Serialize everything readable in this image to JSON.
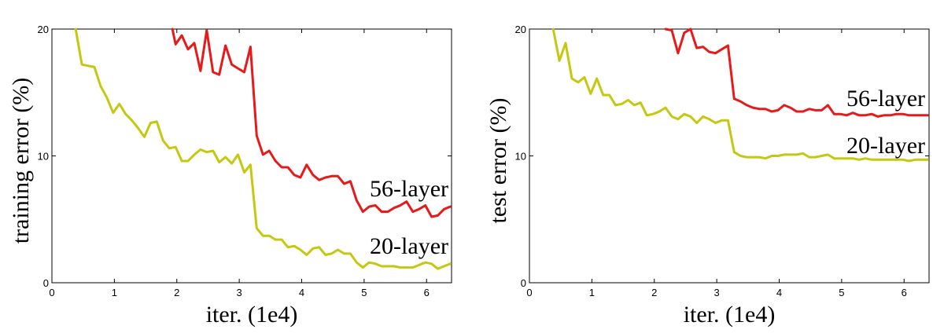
{
  "chart_data": [
    {
      "type": "line",
      "title": "",
      "xlabel": "iter. (1e4)",
      "ylabel": "training error (%)",
      "xlim": [
        0,
        6.4
      ],
      "ylim": [
        0,
        20
      ],
      "xticks": [
        "0",
        "1",
        "2",
        "3",
        "4",
        "5",
        "6"
      ],
      "yticks": [
        "0",
        "10",
        "20"
      ],
      "grid": false,
      "series": [
        {
          "name": "56-layer",
          "color": "#e8191a",
          "x": [
            1.93,
            1.98,
            2.08,
            2.18,
            2.28,
            2.38,
            2.48,
            2.58,
            2.68,
            2.78,
            2.88,
            2.98,
            3.08,
            3.18,
            3.28,
            3.38,
            3.48,
            3.58,
            3.68,
            3.78,
            3.88,
            3.98,
            4.08,
            4.18,
            4.28,
            4.38,
            4.48,
            4.58,
            4.68,
            4.78,
            4.88,
            4.98,
            5.08,
            5.18,
            5.28,
            5.38,
            5.48,
            5.58,
            5.68,
            5.78,
            5.88,
            5.98,
            6.08,
            6.18,
            6.28,
            6.38
          ],
          "values": [
            20.0,
            18.8,
            19.5,
            18.4,
            18.9,
            16.7,
            19.9,
            16.6,
            16.4,
            18.7,
            17.2,
            16.9,
            16.6,
            18.6,
            11.6,
            10.1,
            10.4,
            9.6,
            9.1,
            9.1,
            8.5,
            8.3,
            9.3,
            8.5,
            8.1,
            8.3,
            8.4,
            8.4,
            7.8,
            8.0,
            6.5,
            5.6,
            6.0,
            6.1,
            5.6,
            5.6,
            5.9,
            6.1,
            6.4,
            5.6,
            5.8,
            6.1,
            5.2,
            5.3,
            5.8,
            6.0
          ]
        },
        {
          "name": "20-layer",
          "color": "#c4c810",
          "x": [
            0.38,
            0.48,
            0.58,
            0.68,
            0.78,
            0.88,
            0.98,
            1.08,
            1.18,
            1.28,
            1.38,
            1.48,
            1.58,
            1.68,
            1.78,
            1.88,
            1.98,
            2.08,
            2.18,
            2.28,
            2.38,
            2.48,
            2.58,
            2.68,
            2.78,
            2.88,
            2.98,
            3.08,
            3.18,
            3.28,
            3.38,
            3.48,
            3.58,
            3.68,
            3.78,
            3.88,
            3.98,
            4.08,
            4.18,
            4.28,
            4.38,
            4.48,
            4.58,
            4.68,
            4.78,
            4.88,
            4.98,
            5.08,
            5.18,
            5.28,
            5.38,
            5.48,
            5.58,
            5.68,
            5.78,
            5.88,
            5.98,
            6.08,
            6.18,
            6.28,
            6.38
          ],
          "values": [
            20.0,
            17.2,
            17.1,
            17.0,
            15.5,
            14.6,
            13.4,
            14.1,
            13.3,
            12.8,
            12.2,
            11.5,
            12.6,
            12.7,
            11.2,
            10.6,
            10.7,
            9.6,
            9.6,
            10.1,
            10.5,
            10.3,
            10.4,
            9.5,
            9.9,
            9.4,
            10.1,
            8.7,
            9.3,
            4.3,
            3.7,
            3.7,
            3.4,
            3.4,
            2.8,
            2.9,
            2.6,
            2.2,
            2.7,
            2.8,
            2.2,
            2.3,
            2.6,
            2.3,
            2.3,
            1.6,
            1.2,
            1.6,
            1.5,
            1.3,
            1.3,
            1.3,
            1.2,
            1.2,
            1.2,
            1.4,
            1.6,
            1.5,
            1.1,
            1.3,
            1.5
          ]
        }
      ]
    },
    {
      "type": "line",
      "title": "",
      "xlabel": "iter. (1e4)",
      "ylabel": "test error (%)",
      "xlim": [
        0,
        6.4
      ],
      "ylim": [
        0,
        20
      ],
      "xticks": [
        "0",
        "1",
        "2",
        "3",
        "4",
        "5",
        "6"
      ],
      "yticks": [
        "0",
        "10",
        "20"
      ],
      "grid": false,
      "series": [
        {
          "name": "56-layer",
          "color": "#e8191a",
          "x": [
            2.18,
            2.28,
            2.38,
            2.48,
            2.58,
            2.68,
            2.78,
            2.88,
            2.98,
            3.08,
            3.18,
            3.28,
            3.38,
            3.48,
            3.58,
            3.68,
            3.78,
            3.88,
            3.98,
            4.08,
            4.18,
            4.28,
            4.38,
            4.48,
            4.58,
            4.68,
            4.78,
            4.88,
            4.98,
            5.08,
            5.18,
            5.28,
            5.38,
            5.48,
            5.58,
            5.68,
            5.78,
            5.88,
            5.98,
            6.08,
            6.18,
            6.28,
            6.38
          ],
          "values": [
            20.0,
            19.9,
            18.1,
            19.7,
            20.0,
            18.5,
            18.6,
            18.2,
            18.1,
            18.4,
            18.7,
            14.5,
            14.3,
            14.0,
            13.8,
            13.7,
            13.7,
            13.5,
            13.6,
            14.0,
            13.8,
            13.5,
            13.5,
            13.7,
            13.6,
            13.6,
            14.0,
            13.3,
            13.3,
            13.2,
            13.4,
            13.2,
            13.2,
            13.3,
            13.1,
            13.2,
            13.2,
            13.3,
            13.3,
            13.2,
            13.2,
            13.2,
            13.2
          ]
        },
        {
          "name": "20-layer",
          "color": "#c4c810",
          "x": [
            0.38,
            0.48,
            0.58,
            0.68,
            0.78,
            0.88,
            0.98,
            1.08,
            1.18,
            1.28,
            1.38,
            1.48,
            1.58,
            1.68,
            1.78,
            1.88,
            1.98,
            2.08,
            2.18,
            2.28,
            2.38,
            2.48,
            2.58,
            2.68,
            2.78,
            2.88,
            2.98,
            3.08,
            3.18,
            3.28,
            3.38,
            3.48,
            3.58,
            3.68,
            3.78,
            3.88,
            3.98,
            4.08,
            4.18,
            4.28,
            4.38,
            4.48,
            4.58,
            4.68,
            4.78,
            4.88,
            4.98,
            5.08,
            5.18,
            5.28,
            5.38,
            5.48,
            5.58,
            5.68,
            5.78,
            5.88,
            5.98,
            6.08,
            6.18,
            6.28,
            6.38
          ],
          "values": [
            20.0,
            17.5,
            18.9,
            16.1,
            15.8,
            16.2,
            14.9,
            16.1,
            14.8,
            14.8,
            14.0,
            14.1,
            14.4,
            14.0,
            14.2,
            13.2,
            13.3,
            13.5,
            13.8,
            13.1,
            12.9,
            13.3,
            13.1,
            12.6,
            13.1,
            12.9,
            12.6,
            12.8,
            12.8,
            10.3,
            10.0,
            9.9,
            9.9,
            9.9,
            9.8,
            10.0,
            10.0,
            10.1,
            10.1,
            10.1,
            10.2,
            9.9,
            9.9,
            10.0,
            10.1,
            9.8,
            9.8,
            9.8,
            9.8,
            9.7,
            9.8,
            9.7,
            9.7,
            9.7,
            9.7,
            9.7,
            9.7,
            9.6,
            9.7,
            9.7,
            9.7
          ]
        }
      ]
    }
  ]
}
